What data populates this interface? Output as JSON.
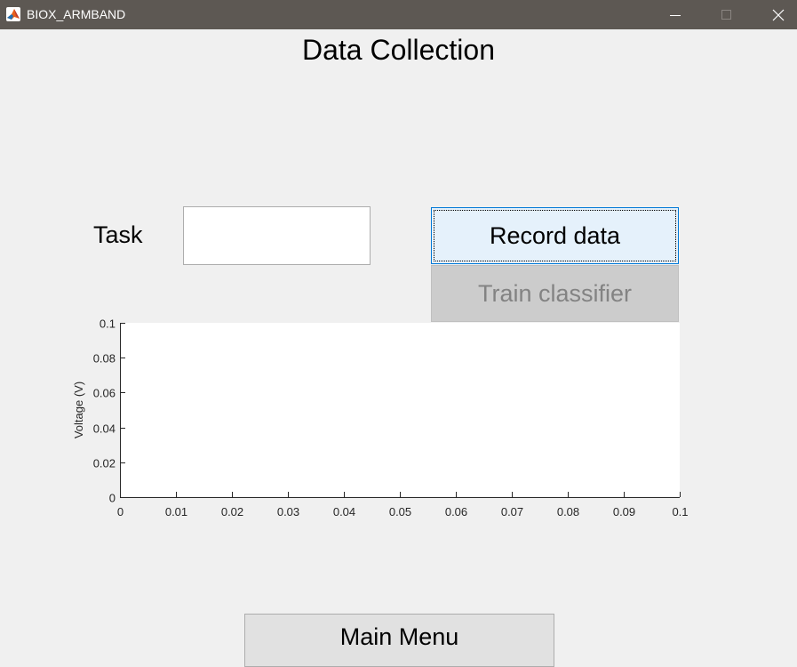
{
  "window": {
    "title": "BIOX_ARMBAND",
    "app_icon": "matlab-icon",
    "controls": [
      "minimize-icon",
      "maximize-icon",
      "close-icon"
    ]
  },
  "page": {
    "title": "Data Collection"
  },
  "task": {
    "label": "Task",
    "value": "",
    "placeholder": ""
  },
  "buttons": {
    "record": "Record data",
    "train": "Train classifier",
    "main_menu": "Main Menu"
  },
  "colors": {
    "titlebar": "#5d5853",
    "background": "#f0f0f0",
    "record_button": "#e5f1fb",
    "record_border": "#0078d7",
    "disabled_button": "#cccccc",
    "disabled_text": "#838383"
  },
  "chart_data": {
    "type": "line",
    "title": "",
    "xlabel": "",
    "ylabel": "Voltage (V)",
    "xlim": [
      0,
      0.1
    ],
    "ylim": [
      0,
      0.1
    ],
    "x_ticks": [
      "0",
      "0.01",
      "0.02",
      "0.03",
      "0.04",
      "0.05",
      "0.06",
      "0.07",
      "0.08",
      "0.09",
      "0.1"
    ],
    "y_ticks": [
      "0",
      "0.02",
      "0.04",
      "0.06",
      "0.08",
      "0.1"
    ],
    "grid": false,
    "series": []
  }
}
